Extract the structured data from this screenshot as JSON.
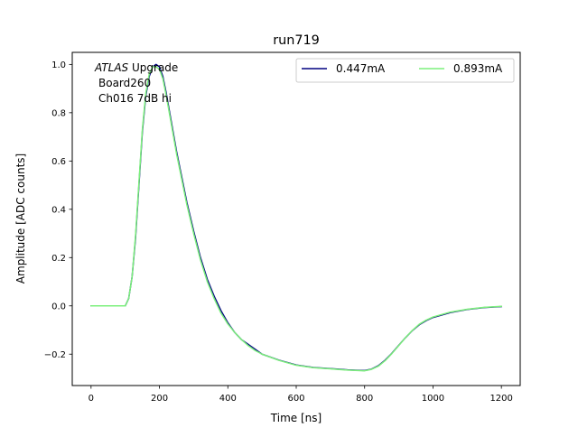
{
  "chart_data": {
    "type": "line",
    "title": "run719",
    "xlabel": "Time [ns]",
    "ylabel": "Amplitude [ADC counts]",
    "xlim": [
      -55,
      1255
    ],
    "ylim": [
      -0.33,
      1.05
    ],
    "xticks": [
      0,
      200,
      400,
      600,
      800,
      1000,
      1200
    ],
    "yticks": [
      -0.2,
      0.0,
      0.2,
      0.4,
      0.6,
      0.8,
      1.0
    ],
    "xtick_labels": [
      "0",
      "200",
      "400",
      "600",
      "800",
      "1000",
      "1200"
    ],
    "ytick_labels": [
      "−0.2",
      "0.0",
      "0.2",
      "0.4",
      "0.6",
      "0.8",
      "1.0"
    ],
    "grid": false,
    "legend_placement": "top-right",
    "annotation": {
      "italic": "ATLAS",
      "rest": " Upgrade",
      "line2": "Board260",
      "line3": "Ch016 7dB hi"
    },
    "series": [
      {
        "name": "0.447mA",
        "color": "#000080",
        "x": [
          0,
          50,
          100,
          110,
          120,
          130,
          140,
          150,
          160,
          170,
          180,
          190,
          200,
          210,
          220,
          230,
          240,
          250,
          260,
          270,
          280,
          300,
          320,
          340,
          360,
          380,
          400,
          420,
          440,
          460,
          480,
          500,
          550,
          600,
          650,
          700,
          750,
          780,
          800,
          820,
          840,
          860,
          880,
          900,
          920,
          940,
          960,
          980,
          1000,
          1050,
          1100,
          1150,
          1200
        ],
        "y": [
          0.0,
          0.0,
          0.0,
          0.03,
          0.12,
          0.28,
          0.5,
          0.72,
          0.87,
          0.95,
          0.99,
          1.0,
          0.99,
          0.95,
          0.88,
          0.8,
          0.72,
          0.64,
          0.57,
          0.5,
          0.43,
          0.31,
          0.2,
          0.11,
          0.04,
          -0.02,
          -0.07,
          -0.11,
          -0.14,
          -0.16,
          -0.18,
          -0.2,
          -0.225,
          -0.245,
          -0.255,
          -0.26,
          -0.265,
          -0.267,
          -0.268,
          -0.262,
          -0.248,
          -0.225,
          -0.196,
          -0.163,
          -0.131,
          -0.102,
          -0.078,
          -0.061,
          -0.048,
          -0.028,
          -0.015,
          -0.007,
          -0.003
        ]
      },
      {
        "name": "0.893mA",
        "color": "#7cf07c",
        "x": [
          0,
          50,
          100,
          110,
          120,
          130,
          140,
          150,
          160,
          170,
          180,
          190,
          200,
          210,
          220,
          230,
          240,
          250,
          260,
          270,
          280,
          300,
          320,
          340,
          360,
          380,
          400,
          420,
          440,
          460,
          480,
          500,
          550,
          600,
          650,
          700,
          750,
          780,
          800,
          820,
          840,
          860,
          880,
          900,
          920,
          940,
          960,
          980,
          1000,
          1050,
          1100,
          1150,
          1200
        ],
        "y": [
          0.0,
          0.0,
          0.0,
          0.03,
          0.12,
          0.29,
          0.51,
          0.73,
          0.88,
          0.96,
          0.99,
          0.99,
          0.98,
          0.94,
          0.87,
          0.79,
          0.71,
          0.63,
          0.56,
          0.49,
          0.42,
          0.3,
          0.19,
          0.1,
          0.03,
          -0.03,
          -0.075,
          -0.11,
          -0.14,
          -0.165,
          -0.185,
          -0.2,
          -0.226,
          -0.246,
          -0.256,
          -0.261,
          -0.266,
          -0.268,
          -0.269,
          -0.263,
          -0.25,
          -0.227,
          -0.197,
          -0.164,
          -0.131,
          -0.101,
          -0.076,
          -0.059,
          -0.046,
          -0.026,
          -0.014,
          -0.006,
          -0.002
        ]
      }
    ]
  }
}
